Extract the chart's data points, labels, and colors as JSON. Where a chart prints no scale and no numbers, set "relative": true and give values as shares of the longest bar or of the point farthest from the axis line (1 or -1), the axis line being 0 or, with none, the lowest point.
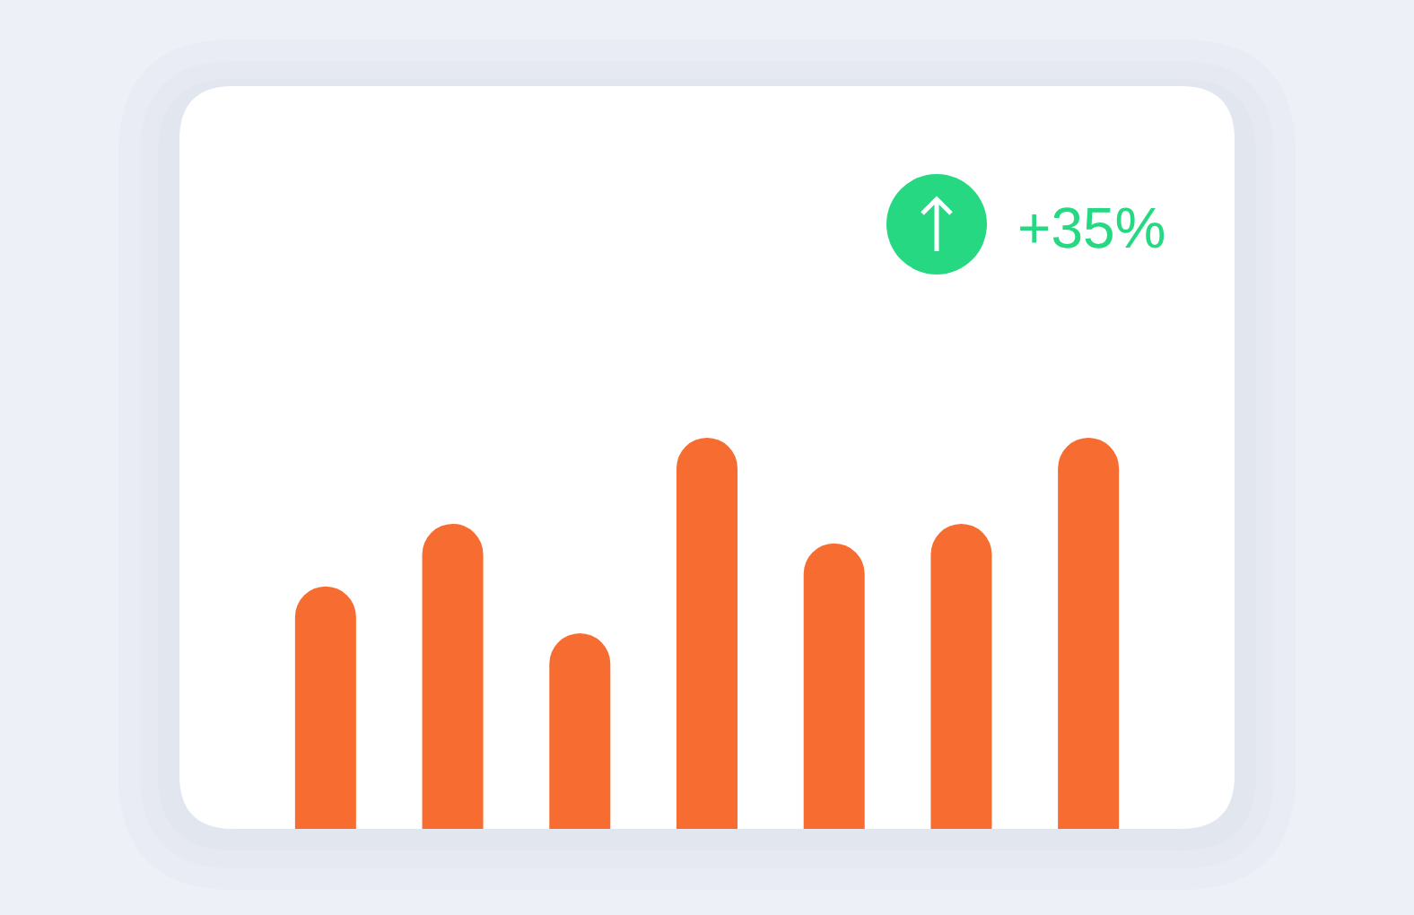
{
  "chart_data": {
    "type": "bar",
    "relative": true,
    "categories": [
      null,
      null,
      null,
      null,
      null,
      null,
      null
    ],
    "values": [
      0.62,
      0.78,
      0.5,
      1,
      0.73,
      0.78,
      1
    ],
    "color": "#f76d31",
    "annotations": [
      "+35%"
    ]
  }
}
